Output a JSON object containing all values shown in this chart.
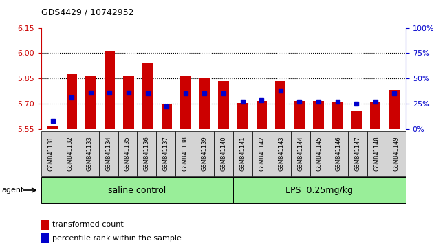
{
  "title": "GDS4429 / 10742952",
  "samples": [
    "GSM841131",
    "GSM841132",
    "GSM841133",
    "GSM841134",
    "GSM841135",
    "GSM841136",
    "GSM841137",
    "GSM841138",
    "GSM841139",
    "GSM841140",
    "GSM841141",
    "GSM841142",
    "GSM841143",
    "GSM841144",
    "GSM841145",
    "GSM841146",
    "GSM841147",
    "GSM841148",
    "GSM841149"
  ],
  "transformed_count": [
    5.565,
    5.875,
    5.865,
    6.01,
    5.865,
    5.94,
    5.695,
    5.865,
    5.855,
    5.835,
    5.705,
    5.715,
    5.835,
    5.715,
    5.715,
    5.71,
    5.655,
    5.71,
    5.78
  ],
  "percentile_rank": [
    8,
    31,
    36,
    36,
    36,
    35,
    22,
    35,
    35,
    35,
    27,
    28,
    38,
    27,
    27,
    27,
    25,
    27,
    35
  ],
  "ylim_left": [
    5.55,
    6.15
  ],
  "ylim_right": [
    0,
    100
  ],
  "yticks_left": [
    5.55,
    5.7,
    5.85,
    6.0,
    6.15
  ],
  "yticks_right": [
    0,
    25,
    50,
    75,
    100
  ],
  "bar_color": "#cc0000",
  "dot_color": "#0000cc",
  "bar_width": 0.55,
  "saline_count": 10,
  "lps_count": 9,
  "saline_label": "saline control",
  "lps_label": "LPS  0.25mg/kg",
  "group_bg_color": "#99ee99",
  "agent_label": "agent",
  "legend_red_label": "transformed count",
  "legend_blue_label": "percentile rank within the sample",
  "left_axis_color": "#cc0000",
  "right_axis_color": "#0000cc",
  "tick_box_color": "#d4d4d4",
  "gridline_ticks": [
    5.7,
    5.85,
    6.0
  ]
}
